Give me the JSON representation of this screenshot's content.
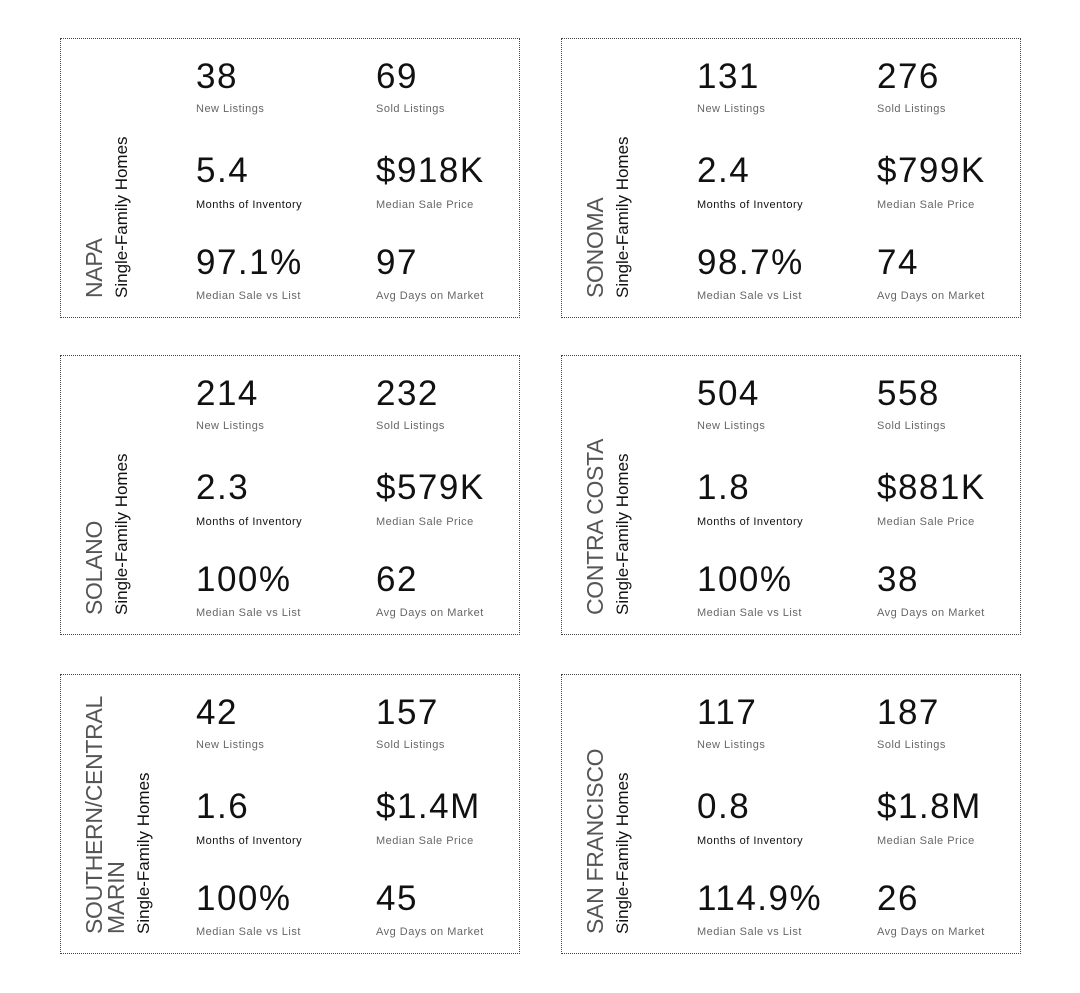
{
  "cards": [
    {
      "region": "NAPA",
      "subtitle": "Single-Family Homes",
      "stats": [
        {
          "value": "38",
          "label": "New Listings"
        },
        {
          "value": "69",
          "label": "Sold Listings"
        },
        {
          "value": "5.4",
          "label": "Months of Inventory"
        },
        {
          "value": "$918K",
          "label": "Median Sale Price"
        },
        {
          "value": "97.1%",
          "label": "Median Sale vs List"
        },
        {
          "value": "97",
          "label": "Avg Days on Market"
        }
      ]
    },
    {
      "region": "SONOMA",
      "subtitle": "Single-Family Homes",
      "stats": [
        {
          "value": "131",
          "label": "New Listings"
        },
        {
          "value": "276",
          "label": "Sold Listings"
        },
        {
          "value": "2.4",
          "label": "Months of Inventory"
        },
        {
          "value": "$799K",
          "label": "Median Sale Price"
        },
        {
          "value": "98.7%",
          "label": "Median Sale vs List"
        },
        {
          "value": "74",
          "label": "Avg Days on Market"
        }
      ]
    },
    {
      "region": "SOLANO",
      "subtitle": "Single-Family Homes",
      "stats": [
        {
          "value": "214",
          "label": "New Listings"
        },
        {
          "value": "232",
          "label": "Sold Listings"
        },
        {
          "value": "2.3",
          "label": "Months of Inventory"
        },
        {
          "value": "$579K",
          "label": "Median Sale Price"
        },
        {
          "value": "100%",
          "label": "Median Sale vs List"
        },
        {
          "value": "62",
          "label": "Avg Days on Market"
        }
      ]
    },
    {
      "region": "CONTRA COSTA",
      "subtitle": "Single-Family Homes",
      "stats": [
        {
          "value": "504",
          "label": "New Listings"
        },
        {
          "value": "558",
          "label": "Sold Listings"
        },
        {
          "value": "1.8",
          "label": "Months of Inventory"
        },
        {
          "value": "$881K",
          "label": "Median Sale Price"
        },
        {
          "value": "100%",
          "label": "Median Sale vs List"
        },
        {
          "value": "38",
          "label": "Avg Days on Market"
        }
      ]
    },
    {
      "region": "SOUTHERN/CENTRAL MARIN",
      "subtitle": "Single-Family Homes",
      "stats": [
        {
          "value": "42",
          "label": "New Listings"
        },
        {
          "value": "157",
          "label": "Sold Listings"
        },
        {
          "value": "1.6",
          "label": "Months of Inventory"
        },
        {
          "value": "$1.4M",
          "label": "Median Sale Price"
        },
        {
          "value": "100%",
          "label": "Median Sale vs List"
        },
        {
          "value": "45",
          "label": "Avg Days on Market"
        }
      ]
    },
    {
      "region": "SAN FRANCISCO",
      "subtitle": "Single-Family Homes",
      "stats": [
        {
          "value": "117",
          "label": "New Listings"
        },
        {
          "value": "187",
          "label": "Sold Listings"
        },
        {
          "value": "0.8",
          "label": "Months of Inventory"
        },
        {
          "value": "$1.8M",
          "label": "Median Sale Price"
        },
        {
          "value": "114.9%",
          "label": "Median Sale vs List"
        },
        {
          "value": "26",
          "label": "Avg Days on Market"
        }
      ]
    }
  ]
}
